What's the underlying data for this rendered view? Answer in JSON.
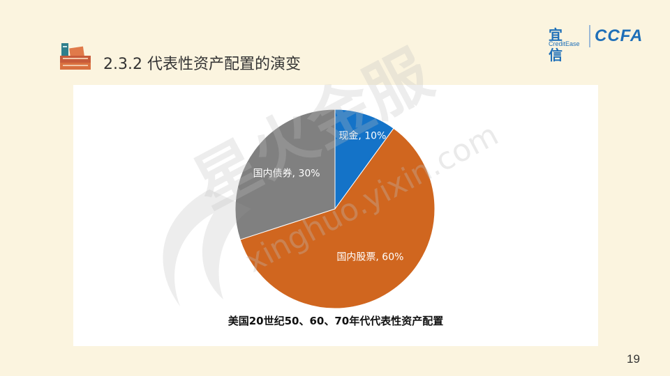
{
  "slide": {
    "title": "2.3.2 代表性资产配置的演变",
    "page_number": "19"
  },
  "logo": {
    "brand_cn": "宜信",
    "brand_en": "CreditEase",
    "partner": "CCFA"
  },
  "watermark": {
    "text_cn": "星火金服",
    "text_url": "xinghuo.yixin.com"
  },
  "chart_data": {
    "type": "pie",
    "title": "美国20世纪50、60、70年代代表性资产配置",
    "start_angle_deg": 0,
    "direction": "clockwise",
    "slices": [
      {
        "label": "现金",
        "value": 10,
        "display": "现金, 10%",
        "color": "#1473C8"
      },
      {
        "label": "国内股票",
        "value": 60,
        "display": "国内股票, 60%",
        "color": "#D0661F"
      },
      {
        "label": "国内债券",
        "value": 30,
        "display": "国内债券, 30%",
        "color": "#808080"
      }
    ]
  },
  "colors": {
    "background": "#FBF4DF",
    "panel": "#FFFFFF",
    "brand_blue": "#1E6FB8"
  }
}
